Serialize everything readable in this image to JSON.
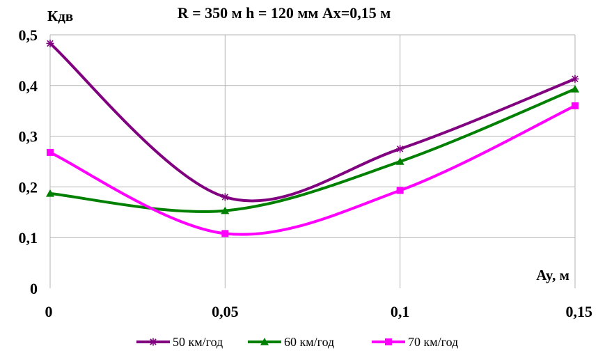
{
  "chart_data": {
    "type": "line",
    "title": "R = 350 м  h = 120 мм Ax=0,15 м",
    "ylabel": "Кдв",
    "xlabel": "Ay, м",
    "x": [
      0,
      0.05,
      0.1,
      0.15
    ],
    "x_tick_labels": [
      "0",
      "0,05",
      "0,1",
      "0,15"
    ],
    "y_tick_labels": [
      "0",
      "0,1",
      "0,2",
      "0,3",
      "0,4",
      "0,5"
    ],
    "ylim": [
      0,
      0.5
    ],
    "xlim": [
      0,
      0.15
    ],
    "grid": true,
    "smooth": true,
    "legend_position": "bottom",
    "series": [
      {
        "name": "50 км/год",
        "values": [
          0.483,
          0.18,
          0.275,
          0.413
        ],
        "color": "#800080",
        "marker": "asterisk"
      },
      {
        "name": "60 км/год",
        "values": [
          0.187,
          0.153,
          0.25,
          0.393
        ],
        "color": "#008000",
        "marker": "triangle"
      },
      {
        "name": "70 км/год",
        "values": [
          0.268,
          0.108,
          0.193,
          0.36
        ],
        "color": "#ff00ff",
        "marker": "square"
      }
    ]
  }
}
